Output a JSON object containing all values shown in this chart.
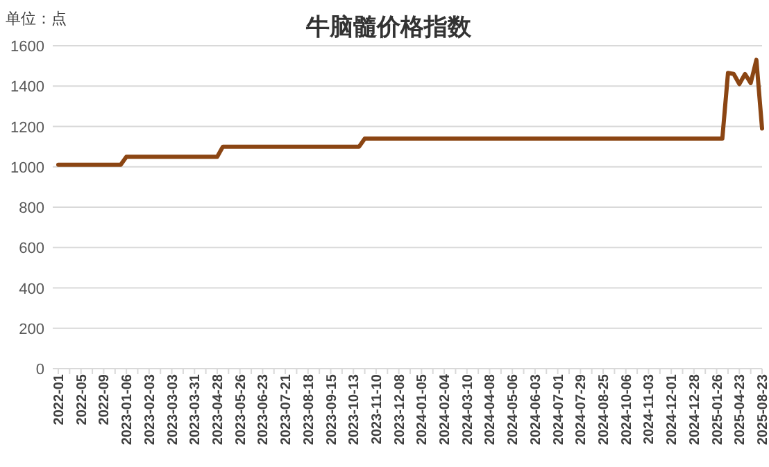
{
  "chart_data": {
    "type": "line",
    "title": "牛脑髓价格指数",
    "annotations": [
      "单位：点"
    ],
    "categories": [
      "2022-01",
      null,
      null,
      null,
      "2022-05",
      null,
      null,
      null,
      "2022-09",
      null,
      null,
      null,
      "2023-01-06",
      null,
      null,
      null,
      "2023-02-03",
      null,
      null,
      null,
      "2023-03-03",
      null,
      null,
      null,
      "2023-03-31",
      null,
      null,
      null,
      "2023-04-28",
      null,
      null,
      null,
      "2023-05-26",
      null,
      null,
      null,
      "2023-06-23",
      null,
      null,
      null,
      "2023-07-21",
      null,
      null,
      null,
      "2023-08-18",
      null,
      null,
      null,
      "2023-09-15",
      null,
      null,
      null,
      "2023-10-13",
      null,
      null,
      null,
      "2023-11-10",
      null,
      null,
      null,
      "2023-12-08",
      null,
      null,
      null,
      "2024-01-05",
      null,
      null,
      null,
      "2024-02-04",
      null,
      null,
      null,
      "2024-03-10",
      null,
      null,
      null,
      "2024-04-08",
      null,
      null,
      null,
      "2024-05-06",
      null,
      null,
      null,
      "2024-06-03",
      null,
      null,
      null,
      "2024-07-01",
      null,
      null,
      null,
      "2024-07-29",
      null,
      null,
      null,
      "2024-08-25",
      null,
      null,
      null,
      "2024-10-06",
      null,
      null,
      null,
      "2024-11-03",
      null,
      null,
      null,
      "2024-12-01",
      null,
      null,
      null,
      "2024-12-28",
      null,
      null,
      null,
      "2025-01-26",
      null,
      null,
      null,
      "2025-04-23",
      null,
      null,
      null,
      "2025-08-23"
    ],
    "series": [
      {
        "color": "#8b4513",
        "values": [
          1010,
          1010,
          1010,
          1010,
          1010,
          1010,
          1010,
          1010,
          1010,
          1010,
          1010,
          1010,
          1050,
          1050,
          1050,
          1050,
          1050,
          1050,
          1050,
          1050,
          1050,
          1050,
          1050,
          1050,
          1050,
          1050,
          1050,
          1050,
          1050,
          1100,
          1100,
          1100,
          1100,
          1100,
          1100,
          1100,
          1100,
          1100,
          1100,
          1100,
          1100,
          1100,
          1100,
          1100,
          1100,
          1100,
          1100,
          1100,
          1100,
          1100,
          1100,
          1100,
          1100,
          1100,
          1140,
          1140,
          1140,
          1140,
          1140,
          1140,
          1140,
          1140,
          1140,
          1140,
          1140,
          1140,
          1140,
          1140,
          1140,
          1140,
          1140,
          1140,
          1140,
          1140,
          1140,
          1140,
          1140,
          1140,
          1140,
          1140,
          1140,
          1140,
          1140,
          1140,
          1140,
          1140,
          1140,
          1140,
          1140,
          1140,
          1140,
          1140,
          1140,
          1140,
          1140,
          1140,
          1140,
          1140,
          1140,
          1140,
          1140,
          1140,
          1140,
          1140,
          1140,
          1140,
          1140,
          1140,
          1140,
          1140,
          1140,
          1140,
          1140,
          1140,
          1140,
          1140,
          1140,
          1140,
          1465,
          1460,
          1410,
          1460,
          1415,
          1530,
          1190
        ]
      }
    ],
    "ylim": [
      0,
      1600
    ],
    "yticks": [
      0,
      200,
      400,
      600,
      800,
      1000,
      1200,
      1400,
      1600
    ],
    "grid": "y"
  }
}
